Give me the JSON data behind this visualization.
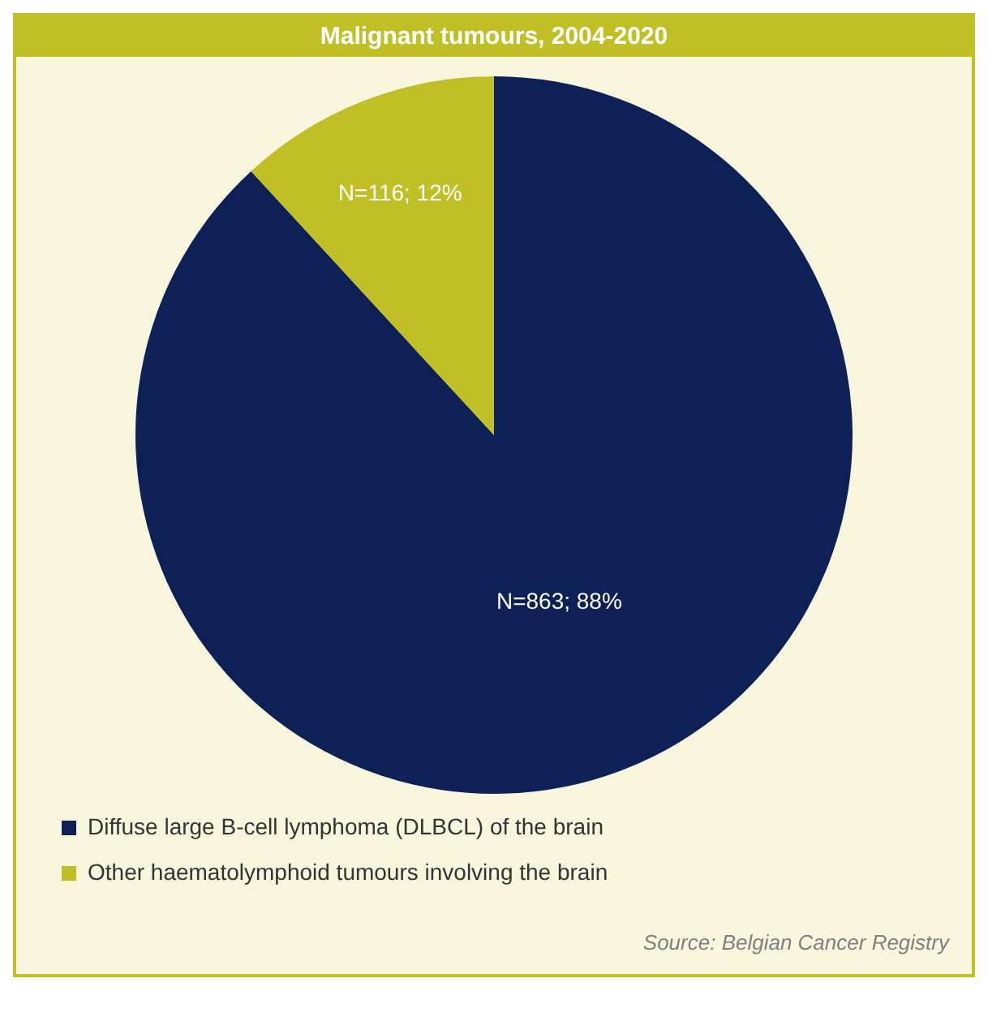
{
  "chart_data": {
    "type": "pie",
    "title": "Malignant tumours, 2004-2020",
    "categories": [
      "Diffuse large B-cell lymphoma (DLBCL) of the brain",
      "Other haematolymphoid tumours involving the brain"
    ],
    "values": [
      863,
      116
    ],
    "value_labels": [
      "N=863; 88%",
      "N=116; 12%"
    ],
    "colors": [
      "#0e2156",
      "#c0c026"
    ],
    "legend": "bottom left",
    "annotations": [
      "Source: Belgian Cancer Registry"
    ]
  }
}
